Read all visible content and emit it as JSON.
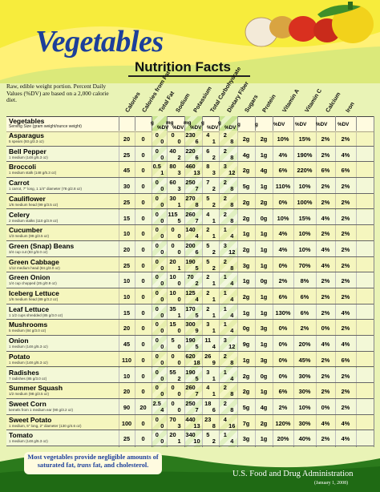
{
  "title": "Vegetables",
  "subtitle": "Nutrition Facts",
  "note": "Raw, edible weight portion. Percent Daily Values (%DV) are based on a 2,000 calorie diet.",
  "columns": [
    "Calories",
    "Calories from Fat",
    "Total Fat",
    "Sodium",
    "Potassium",
    "Total Carbohydrate",
    "Dietary Fiber",
    "Sugars",
    "Protein",
    "Vitamin A",
    "Vitamin C",
    "Calcium",
    "Iron"
  ],
  "header": {
    "veg_label": "Vegetables",
    "serving_label": "Serving Size (gram weight/ounce weight)",
    "units": [
      "g",
      "%DV",
      "mg",
      "%DV",
      "mg",
      "%DV",
      "g",
      "%DV",
      "g",
      "%DV",
      "g",
      "g",
      "%DV",
      "%DV",
      "%DV",
      "%DV"
    ]
  },
  "rows": [
    {
      "name": "Asparagus",
      "serving": "5 spears (93 g/3.3 oz)",
      "cal": "20",
      "fat_cal": "0",
      "fat": [
        "0",
        "0"
      ],
      "sod": [
        "0",
        "0"
      ],
      "pot": [
        "230",
        "6"
      ],
      "carb": [
        "4",
        "1"
      ],
      "fiber": [
        "2",
        "8"
      ],
      "sugar": "2g",
      "protein": "2g",
      "vita": "10%",
      "vitc": "15%",
      "calc": "2%",
      "iron": "2%"
    },
    {
      "name": "Bell Pepper",
      "serving": "1 medium (148 g/5.3 oz)",
      "cal": "25",
      "fat_cal": "0",
      "fat": [
        "0",
        "0"
      ],
      "sod": [
        "40",
        "2"
      ],
      "pot": [
        "220",
        "6"
      ],
      "carb": [
        "6",
        "2"
      ],
      "fiber": [
        "2",
        "8"
      ],
      "sugar": "4g",
      "protein": "1g",
      "vita": "4%",
      "vitc": "190%",
      "calc": "2%",
      "iron": "4%"
    },
    {
      "name": "Broccoli",
      "serving": "1 medium stalk (148 g/5.3 oz)",
      "cal": "45",
      "fat_cal": "0",
      "fat": [
        "0.5",
        "1"
      ],
      "sod": [
        "80",
        "3"
      ],
      "pot": [
        "460",
        "13"
      ],
      "carb": [
        "8",
        "3"
      ],
      "fiber": [
        "3",
        "12"
      ],
      "sugar": "2g",
      "protein": "4g",
      "vita": "6%",
      "vitc": "220%",
      "calc": "6%",
      "iron": "6%"
    },
    {
      "name": "Carrot",
      "serving": "1 carrot, 7\" long, 1 1/4\" diameter (78 g/2.8 oz)",
      "cal": "30",
      "fat_cal": "0",
      "fat": [
        "0",
        "0"
      ],
      "sod": [
        "60",
        "3"
      ],
      "pot": [
        "250",
        "7"
      ],
      "carb": [
        "7",
        "2"
      ],
      "fiber": [
        "2",
        "8"
      ],
      "sugar": "5g",
      "protein": "1g",
      "vita": "110%",
      "vitc": "10%",
      "calc": "2%",
      "iron": "2%"
    },
    {
      "name": "Cauliflower",
      "serving": "1/6 medium head (99 g/3.5 oz)",
      "cal": "25",
      "fat_cal": "0",
      "fat": [
        "0",
        "0"
      ],
      "sod": [
        "30",
        "1"
      ],
      "pot": [
        "270",
        "8"
      ],
      "carb": [
        "5",
        "2"
      ],
      "fiber": [
        "2",
        "8"
      ],
      "sugar": "2g",
      "protein": "2g",
      "vita": "0%",
      "vitc": "100%",
      "calc": "2%",
      "iron": "2%"
    },
    {
      "name": "Celery",
      "serving": "2 medium stalks (110 g/3.9 oz)",
      "cal": "15",
      "fat_cal": "0",
      "fat": [
        "0",
        "0"
      ],
      "sod": [
        "115",
        "5"
      ],
      "pot": [
        "260",
        "7"
      ],
      "carb": [
        "4",
        "1"
      ],
      "fiber": [
        "2",
        "8"
      ],
      "sugar": "2g",
      "protein": "0g",
      "vita": "10%",
      "vitc": "15%",
      "calc": "4%",
      "iron": "2%"
    },
    {
      "name": "Cucumber",
      "serving": "1/3 medium (99 g/3.5 oz)",
      "cal": "10",
      "fat_cal": "0",
      "fat": [
        "0",
        "0"
      ],
      "sod": [
        "0",
        "0"
      ],
      "pot": [
        "140",
        "4"
      ],
      "carb": [
        "2",
        "1"
      ],
      "fiber": [
        "1",
        "4"
      ],
      "sugar": "1g",
      "protein": "1g",
      "vita": "4%",
      "vitc": "10%",
      "calc": "2%",
      "iron": "2%"
    },
    {
      "name": "Green (Snap) Beans",
      "serving": "3/4 cup cut (83 g/3.0 oz)",
      "cal": "20",
      "fat_cal": "0",
      "fat": [
        "0",
        "0"
      ],
      "sod": [
        "0",
        "0"
      ],
      "pot": [
        "200",
        "6"
      ],
      "carb": [
        "5",
        "2"
      ],
      "fiber": [
        "3",
        "12"
      ],
      "sugar": "2g",
      "protein": "1g",
      "vita": "4%",
      "vitc": "10%",
      "calc": "4%",
      "iron": "2%"
    },
    {
      "name": "Green Cabbage",
      "serving": "1/12 medium head (84 g/3.0 oz)",
      "cal": "25",
      "fat_cal": "0",
      "fat": [
        "0",
        "0"
      ],
      "sod": [
        "20",
        "1"
      ],
      "pot": [
        "190",
        "5"
      ],
      "carb": [
        "5",
        "2"
      ],
      "fiber": [
        "2",
        "8"
      ],
      "sugar": "3g",
      "protein": "1g",
      "vita": "0%",
      "vitc": "70%",
      "calc": "4%",
      "iron": "2%"
    },
    {
      "name": "Green Onion",
      "serving": "1/4 cup chopped (25 g/0.9 oz)",
      "cal": "10",
      "fat_cal": "0",
      "fat": [
        "0",
        "0"
      ],
      "sod": [
        "10",
        "0"
      ],
      "pot": [
        "70",
        "2"
      ],
      "carb": [
        "2",
        "1"
      ],
      "fiber": [
        "1",
        "4"
      ],
      "sugar": "1g",
      "protein": "0g",
      "vita": "2%",
      "vitc": "8%",
      "calc": "2%",
      "iron": "2%"
    },
    {
      "name": "Iceberg Lettuce",
      "serving": "1/6 medium head (89 g/3.2 oz)",
      "cal": "10",
      "fat_cal": "0",
      "fat": [
        "0",
        "0"
      ],
      "sod": [
        "10",
        "0"
      ],
      "pot": [
        "125",
        "4"
      ],
      "carb": [
        "2",
        "1"
      ],
      "fiber": [
        "1",
        "4"
      ],
      "sugar": "2g",
      "protein": "1g",
      "vita": "6%",
      "vitc": "6%",
      "calc": "2%",
      "iron": "2%"
    },
    {
      "name": "Leaf Lettuce",
      "serving": "1 1/2 cups shredded (85 g/3.0 oz)",
      "cal": "15",
      "fat_cal": "0",
      "fat": [
        "0",
        "0"
      ],
      "sod": [
        "35",
        "1"
      ],
      "pot": [
        "170",
        "5"
      ],
      "carb": [
        "2",
        "1"
      ],
      "fiber": [
        "1",
        "4"
      ],
      "sugar": "1g",
      "protein": "1g",
      "vita": "130%",
      "vitc": "6%",
      "calc": "2%",
      "iron": "4%"
    },
    {
      "name": "Mushrooms",
      "serving": "5 medium (84 g/3.0 oz)",
      "cal": "20",
      "fat_cal": "0",
      "fat": [
        "0",
        "0"
      ],
      "sod": [
        "15",
        "0"
      ],
      "pot": [
        "300",
        "9"
      ],
      "carb": [
        "3",
        "1"
      ],
      "fiber": [
        "1",
        "4"
      ],
      "sugar": "0g",
      "protein": "3g",
      "vita": "0%",
      "vitc": "2%",
      "calc": "0%",
      "iron": "2%"
    },
    {
      "name": "Onion",
      "serving": "1 medium (148 g/5.3 oz)",
      "cal": "45",
      "fat_cal": "0",
      "fat": [
        "0",
        "0"
      ],
      "sod": [
        "5",
        "0"
      ],
      "pot": [
        "190",
        "5"
      ],
      "carb": [
        "11",
        "4"
      ],
      "fiber": [
        "3",
        "12"
      ],
      "sugar": "9g",
      "protein": "1g",
      "vita": "0%",
      "vitc": "20%",
      "calc": "4%",
      "iron": "4%"
    },
    {
      "name": "Potato",
      "serving": "1 medium (148 g/5.3 oz)",
      "cal": "110",
      "fat_cal": "0",
      "fat": [
        "0",
        "0"
      ],
      "sod": [
        "0",
        "0"
      ],
      "pot": [
        "620",
        "18"
      ],
      "carb": [
        "26",
        "9"
      ],
      "fiber": [
        "2",
        "8"
      ],
      "sugar": "1g",
      "protein": "3g",
      "vita": "0%",
      "vitc": "45%",
      "calc": "2%",
      "iron": "6%"
    },
    {
      "name": "Radishes",
      "serving": "7 radishes (85 g/3.0 oz)",
      "cal": "10",
      "fat_cal": "0",
      "fat": [
        "0",
        "0"
      ],
      "sod": [
        "55",
        "2"
      ],
      "pot": [
        "190",
        "5"
      ],
      "carb": [
        "3",
        "1"
      ],
      "fiber": [
        "1",
        "4"
      ],
      "sugar": "2g",
      "protein": "0g",
      "vita": "0%",
      "vitc": "30%",
      "calc": "2%",
      "iron": "2%"
    },
    {
      "name": "Summer Squash",
      "serving": "1/2 medium (98 g/3.5 oz)",
      "cal": "20",
      "fat_cal": "0",
      "fat": [
        "0",
        "0"
      ],
      "sod": [
        "0",
        "0"
      ],
      "pot": [
        "260",
        "7"
      ],
      "carb": [
        "4",
        "1"
      ],
      "fiber": [
        "2",
        "8"
      ],
      "sugar": "2g",
      "protein": "1g",
      "vita": "6%",
      "vitc": "30%",
      "calc": "2%",
      "iron": "2%"
    },
    {
      "name": "Sweet Corn",
      "serving": "kernels from 1 medium ear (90 g/3.2 oz)",
      "cal": "90",
      "fat_cal": "20",
      "fat": [
        "2.5",
        "4"
      ],
      "sod": [
        "0",
        "0"
      ],
      "pot": [
        "250",
        "7"
      ],
      "carb": [
        "18",
        "6"
      ],
      "fiber": [
        "2",
        "8"
      ],
      "sugar": "5g",
      "protein": "4g",
      "vita": "2%",
      "vitc": "10%",
      "calc": "0%",
      "iron": "2%"
    },
    {
      "name": "Sweet Potato",
      "serving": "1 medium, 5\" long, 2\" diameter (130 g/4.6 oz)",
      "cal": "100",
      "fat_cal": "0",
      "fat": [
        "0",
        "0"
      ],
      "sod": [
        "70",
        "3"
      ],
      "pot": [
        "440",
        "13"
      ],
      "carb": [
        "23",
        "8"
      ],
      "fiber": [
        "4",
        "16"
      ],
      "sugar": "7g",
      "protein": "2g",
      "vita": "120%",
      "vitc": "30%",
      "calc": "4%",
      "iron": "4%"
    },
    {
      "name": "Tomato",
      "serving": "1 medium (148 g/5.3 oz)",
      "cal": "25",
      "fat_cal": "0",
      "fat": [
        "0",
        "0"
      ],
      "sod": [
        "20",
        "1"
      ],
      "pot": [
        "340",
        "10"
      ],
      "carb": [
        "5",
        "2"
      ],
      "fiber": [
        "1",
        "4"
      ],
      "sugar": "3g",
      "protein": "1g",
      "vita": "20%",
      "vitc": "40%",
      "calc": "2%",
      "iron": "4%"
    }
  ],
  "footer": {
    "note_line1": "Most vegetables provide negligible amounts of",
    "note_line2_a": "saturated fat, ",
    "note_line2_b": "trans",
    "note_line2_c": " fat, and cholesterol.",
    "agency": "U.S. Food and Drug Administration",
    "date": "(January 1, 2008)"
  },
  "colors": {
    "title": "#1c3f9a",
    "band": "#fff176",
    "stripe_green": "#bfe08a",
    "footer": "#2b7a1c"
  }
}
